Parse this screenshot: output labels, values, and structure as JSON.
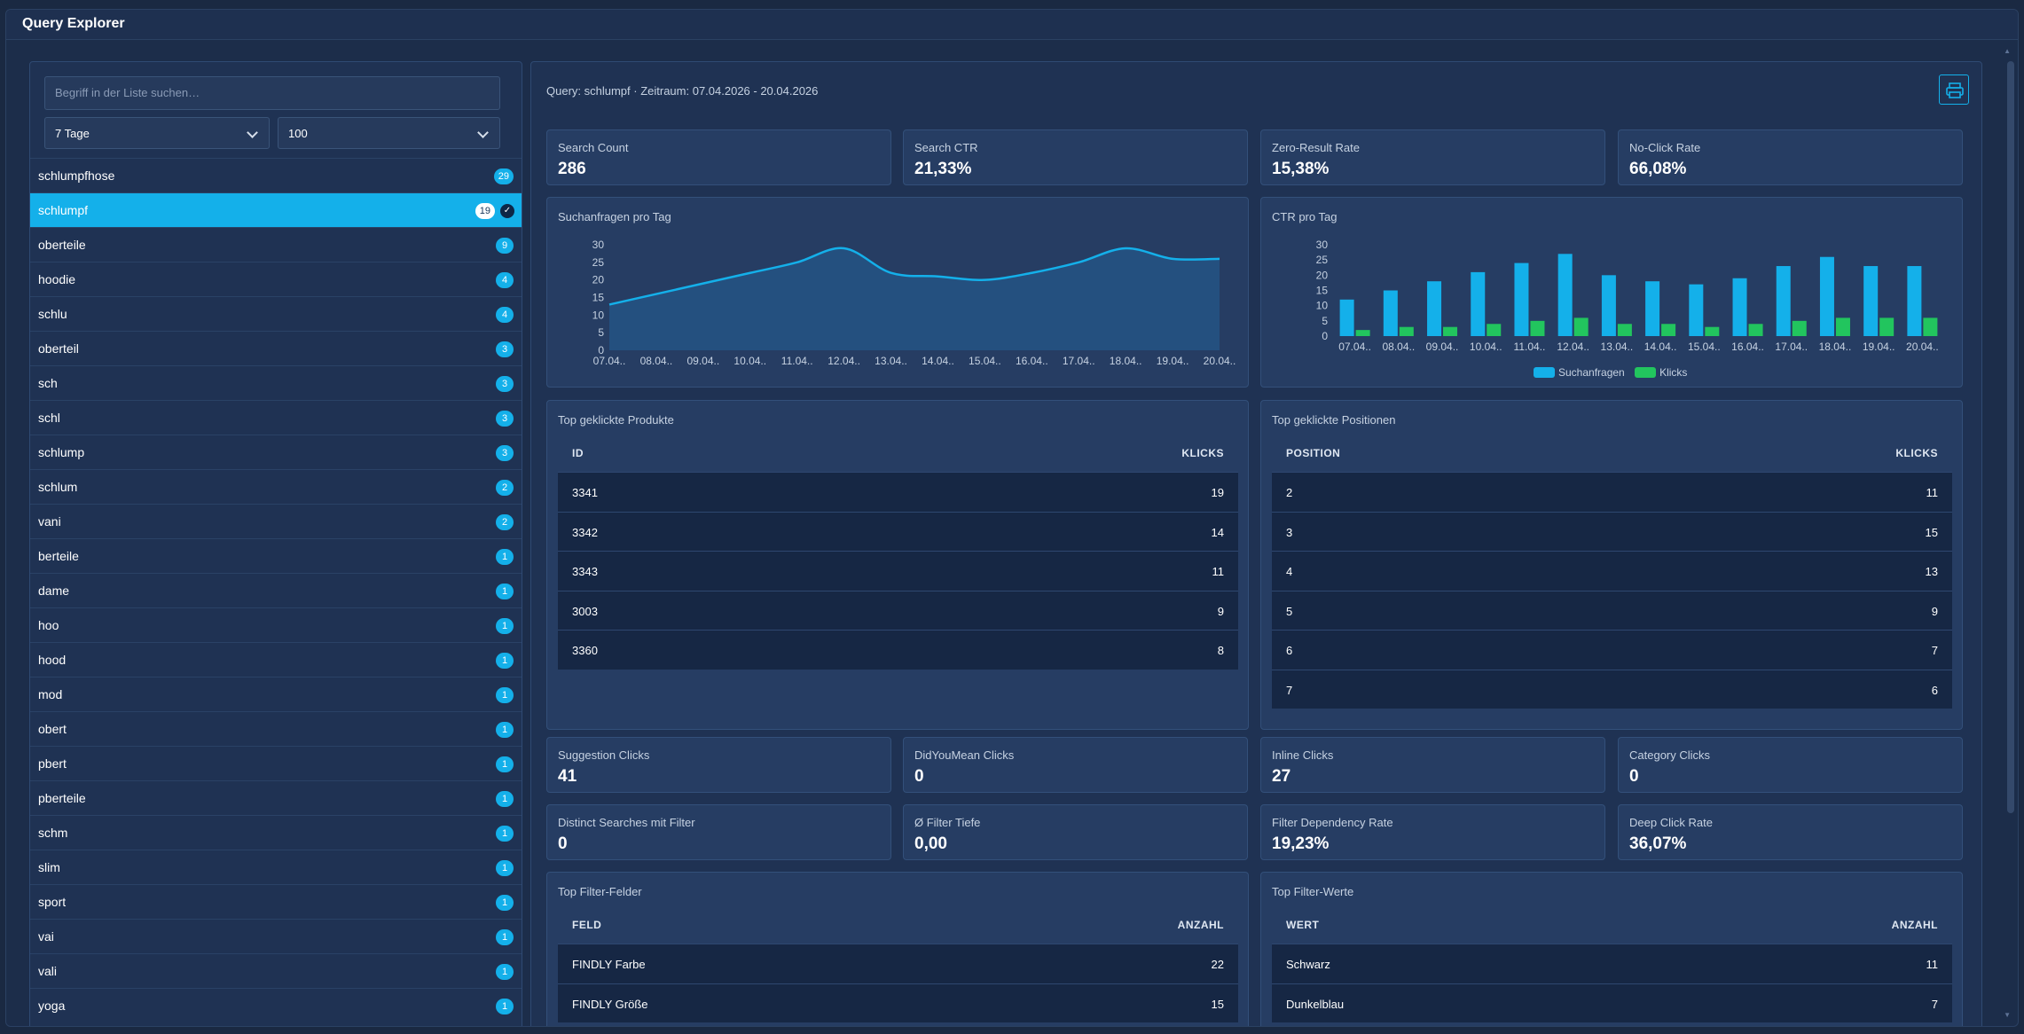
{
  "app": {
    "title": "Query Explorer"
  },
  "sidebar": {
    "search_placeholder": "Begriff in der Liste suchen…",
    "period_select": "7 Tage",
    "limit_select": "100",
    "terms": [
      {
        "label": "schlumpfhose",
        "count": "29"
      },
      {
        "label": "schlumpf",
        "count": "19",
        "active": true
      },
      {
        "label": "oberteile",
        "count": "9"
      },
      {
        "label": "hoodie",
        "count": "4"
      },
      {
        "label": "schlu",
        "count": "4"
      },
      {
        "label": "oberteil",
        "count": "3"
      },
      {
        "label": "sch",
        "count": "3"
      },
      {
        "label": "schl",
        "count": "3"
      },
      {
        "label": "schlump",
        "count": "3"
      },
      {
        "label": "schlum",
        "count": "2"
      },
      {
        "label": "vani",
        "count": "2"
      },
      {
        "label": "berteile",
        "count": "1"
      },
      {
        "label": "dame",
        "count": "1"
      },
      {
        "label": "hoo",
        "count": "1"
      },
      {
        "label": "hood",
        "count": "1"
      },
      {
        "label": "mod",
        "count": "1"
      },
      {
        "label": "obert",
        "count": "1"
      },
      {
        "label": "pbert",
        "count": "1"
      },
      {
        "label": "pberteile",
        "count": "1"
      },
      {
        "label": "schm",
        "count": "1"
      },
      {
        "label": "slim",
        "count": "1"
      },
      {
        "label": "sport",
        "count": "1"
      },
      {
        "label": "vai",
        "count": "1"
      },
      {
        "label": "vali",
        "count": "1"
      },
      {
        "label": "yoga",
        "count": "1"
      }
    ]
  },
  "main": {
    "query_info": "Query: schlumpf · Zeitraum: 07.04.2026 - 20.04.2026",
    "metrics_row1": [
      {
        "label": "Search Count",
        "value": "286"
      },
      {
        "label": "Search CTR",
        "value": "21,33%"
      },
      {
        "label": "Zero-Result Rate",
        "value": "15,38%"
      },
      {
        "label": "No-Click Rate",
        "value": "66,08%"
      }
    ],
    "metrics_row2": [
      {
        "label": "Suggestion Clicks",
        "value": "41"
      },
      {
        "label": "DidYouMean Clicks",
        "value": "0"
      },
      {
        "label": "Inline Clicks",
        "value": "27"
      },
      {
        "label": "Category Clicks",
        "value": "0"
      }
    ],
    "metrics_row3": [
      {
        "label": "Distinct Searches mit Filter",
        "value": "0"
      },
      {
        "label": "Ø Filter Tiefe",
        "value": "0,00"
      },
      {
        "label": "Filter Dependency Rate",
        "value": "19,23%"
      },
      {
        "label": "Deep Click Rate",
        "value": "36,07%"
      }
    ],
    "top_products": {
      "title": "Top geklickte Produkte",
      "col_id": "ID",
      "col_clicks": "KLICKS",
      "rows": [
        {
          "id": "3341",
          "clicks": "19"
        },
        {
          "id": "3342",
          "clicks": "14"
        },
        {
          "id": "3343",
          "clicks": "11"
        },
        {
          "id": "3003",
          "clicks": "9"
        },
        {
          "id": "3360",
          "clicks": "8"
        }
      ]
    },
    "top_positions": {
      "title": "Top geklickte Positionen",
      "col_pos": "POSITION",
      "col_clicks": "KLICKS",
      "rows": [
        {
          "pos": "2",
          "clicks": "11"
        },
        {
          "pos": "3",
          "clicks": "15"
        },
        {
          "pos": "4",
          "clicks": "13"
        },
        {
          "pos": "5",
          "clicks": "9"
        },
        {
          "pos": "6",
          "clicks": "7"
        },
        {
          "pos": "7",
          "clicks": "6"
        }
      ]
    },
    "top_filter_fields": {
      "title": "Top Filter-Felder",
      "col_field": "FELD",
      "col_count": "ANZAHL",
      "rows": [
        {
          "field": "FINDLY Farbe",
          "count": "22"
        },
        {
          "field": "FINDLY Größe",
          "count": "15"
        }
      ]
    },
    "top_filter_values": {
      "title": "Top Filter-Werte",
      "col_value": "WERT",
      "col_count": "ANZAHL",
      "rows": [
        {
          "value": "Schwarz",
          "count": "11"
        },
        {
          "value": "Dunkelblau",
          "count": "7"
        }
      ]
    }
  },
  "colors": {
    "accent": "#14b0ea",
    "clicks": "#22c55e",
    "background": "#1c2d4a"
  },
  "icons": {
    "print": "printer-icon",
    "selected": "check-circle-icon",
    "dropdown": "chevron-down-icon"
  },
  "chart_data": [
    {
      "type": "area",
      "title": "Suchanfragen pro Tag",
      "categories": [
        "07.04..",
        "08.04..",
        "09.04..",
        "10.04..",
        "11.04..",
        "12.04..",
        "13.04..",
        "14.04..",
        "15.04..",
        "16.04..",
        "17.04..",
        "18.04..",
        "19.04..",
        "20.04.."
      ],
      "series": [
        {
          "values": [
            13,
            16,
            19,
            22,
            25,
            29,
            22,
            21,
            20,
            22,
            25,
            29,
            26,
            26
          ]
        }
      ],
      "ylim": [
        0,
        30
      ],
      "yticks": [
        0,
        5,
        10,
        15,
        20,
        25,
        30
      ]
    },
    {
      "type": "bar",
      "title": "CTR pro Tag",
      "categories": [
        "07.04..",
        "08.04..",
        "09.04..",
        "10.04..",
        "11.04..",
        "12.04..",
        "13.04..",
        "14.04..",
        "15.04..",
        "16.04..",
        "17.04..",
        "18.04..",
        "19.04..",
        "20.04.."
      ],
      "series": [
        {
          "name": "Suchanfragen",
          "values": [
            12,
            15,
            18,
            21,
            24,
            27,
            20,
            18,
            17,
            19,
            23,
            26,
            23,
            23
          ]
        },
        {
          "name": "Klicks",
          "values": [
            2,
            3,
            3,
            4,
            5,
            6,
            4,
            4,
            3,
            4,
            5,
            6,
            6,
            6
          ]
        }
      ],
      "ylim": [
        0,
        30
      ],
      "yticks": [
        0,
        5,
        10,
        15,
        20,
        25,
        30
      ],
      "legend": "bottom-center"
    }
  ]
}
